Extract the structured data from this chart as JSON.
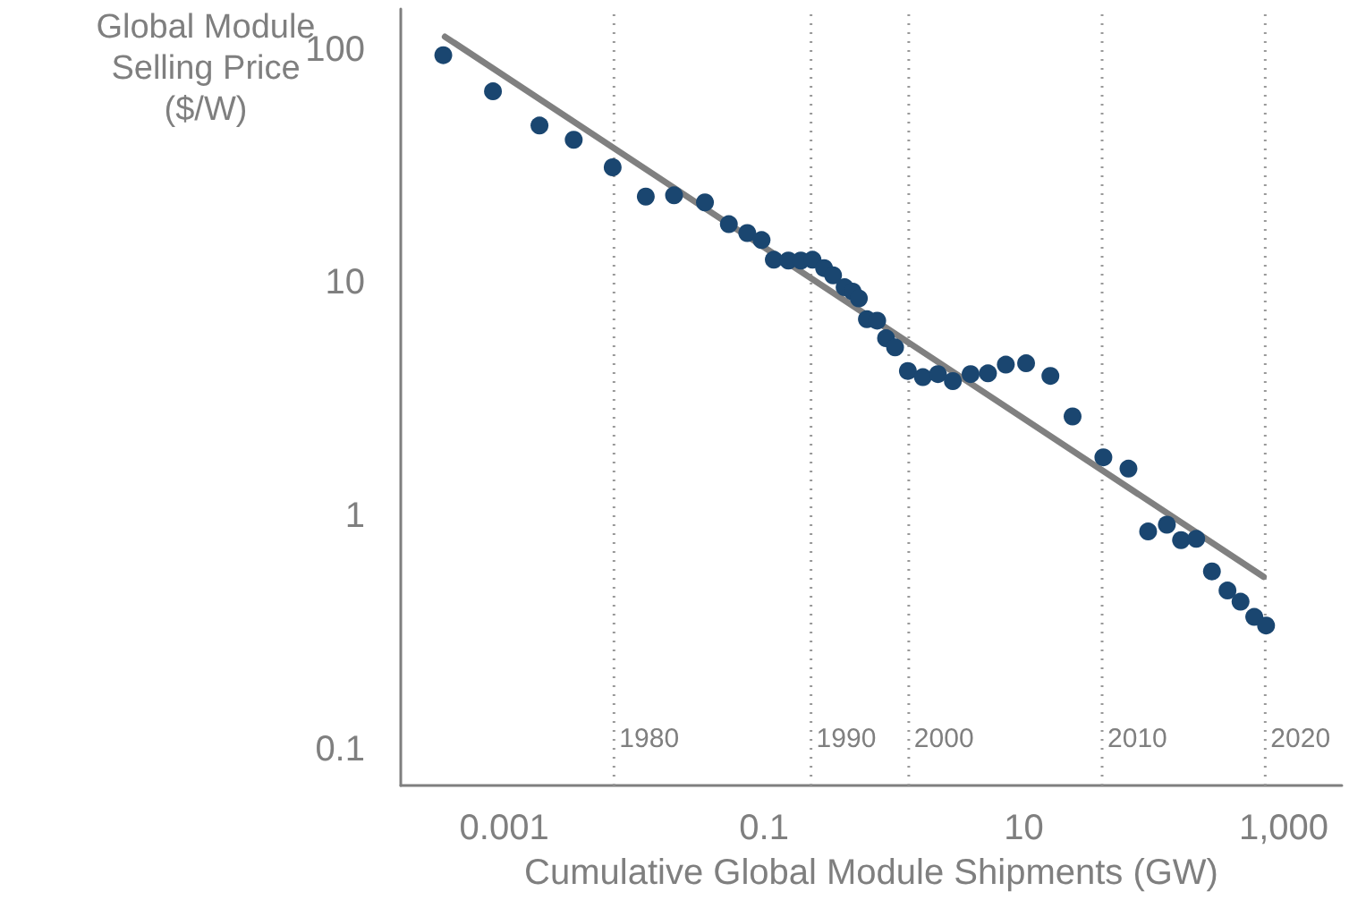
{
  "chart_data": {
    "type": "scatter",
    "xlabel": "Cumulative Global Module Shipments (GW)",
    "ylabel": "Global Module\nSelling Price\n($/W)",
    "log": "xy",
    "grid": false,
    "marker": "circle",
    "xlim": [
      0.00016,
      2800
    ],
    "ylim": [
      0.07,
      150
    ],
    "xticks": [
      0.001,
      0.1,
      10,
      {
        "value": 1000,
        "label": "1,000"
      }
    ],
    "yticks": [
      0.1,
      1,
      10,
      100
    ],
    "series": [
      {
        "color": "#1a4670",
        "x": [
          0.00034,
          0.00082,
          0.00187,
          0.00343,
          0.00684,
          0.0123,
          0.0203,
          0.0351,
          0.0536,
          0.0743,
          0.0957,
          0.119,
          0.154,
          0.192,
          0.236,
          0.29,
          0.34,
          0.417,
          0.481,
          0.537,
          0.619,
          0.743,
          0.869,
          1.02,
          1.28,
          1.67,
          2.18,
          2.84,
          3.89,
          5.29,
          7.26,
          10.4,
          16,
          23.7,
          40.9,
          63.8,
          90.4,
          126,
          162,
          212,
          280,
          369,
          465,
          593,
          731
        ],
        "values": [
          95,
          66.5,
          47.4,
          41.2,
          31.4,
          23.5,
          23.8,
          22.2,
          17.9,
          16.4,
          15.3,
          12.6,
          12.5,
          12.5,
          12.6,
          11.6,
          10.8,
          9.6,
          9.2,
          8.6,
          7.0,
          6.9,
          5.8,
          5.3,
          4.2,
          3.95,
          4.07,
          3.8,
          4.07,
          4.1,
          4.47,
          4.53,
          4.0,
          2.68,
          1.79,
          1.6,
          0.86,
          0.92,
          0.79,
          0.8,
          0.58,
          0.48,
          0.43,
          0.37,
          0.34
        ]
      },
      {
        "type": "line",
        "color": "#808080",
        "marker": "none",
        "x": [
          0.00035,
          700
        ],
        "values": [
          114,
          0.55
        ]
      }
    ],
    "ref_lines": [
      {
        "axis": "x",
        "value": 0.007,
        "color": "#999999",
        "line_style": "dotted"
      },
      {
        "axis": "x",
        "value": 0.23,
        "color": "#999999",
        "line_style": "dotted"
      },
      {
        "axis": "x",
        "value": 1.3,
        "color": "#999999",
        "line_style": "dotted"
      },
      {
        "axis": "x",
        "value": 40,
        "color": "#999999",
        "line_style": "dotted"
      },
      {
        "axis": "x",
        "value": 720,
        "color": "#999999",
        "line_style": "dotted"
      }
    ],
    "annotations": [
      "1980",
      "1990",
      "2000",
      "2010",
      "2020"
    ]
  }
}
